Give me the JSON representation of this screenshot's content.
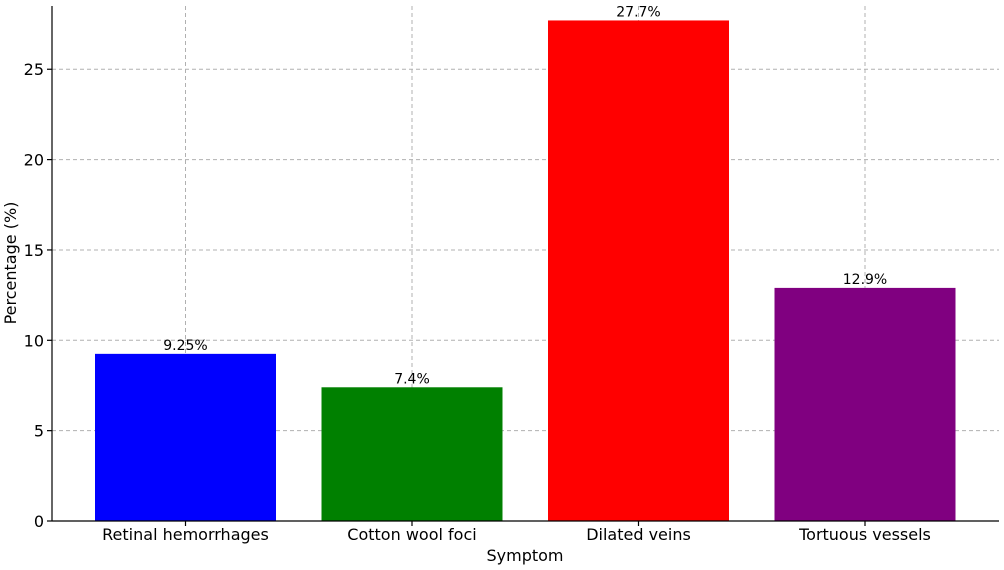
{
  "chart_data": {
    "type": "bar",
    "title": "",
    "xlabel": "Symptom",
    "ylabel": "Percentage (%)",
    "categories": [
      "Retinal hemorrhages",
      "Cotton wool foci",
      "Dilated veins",
      "Tortuous vessels"
    ],
    "values": [
      9.25,
      7.4,
      27.7,
      12.9
    ],
    "value_labels": [
      "9.25%",
      "7.4%",
      "27.7%",
      "12.9%"
    ],
    "colors": [
      "#0000ff",
      "#008000",
      "#ff0000",
      "#800080"
    ],
    "ylim": [
      0,
      28.5
    ],
    "yticks": [
      0,
      5,
      10,
      15,
      20,
      25
    ],
    "grid": true
  }
}
